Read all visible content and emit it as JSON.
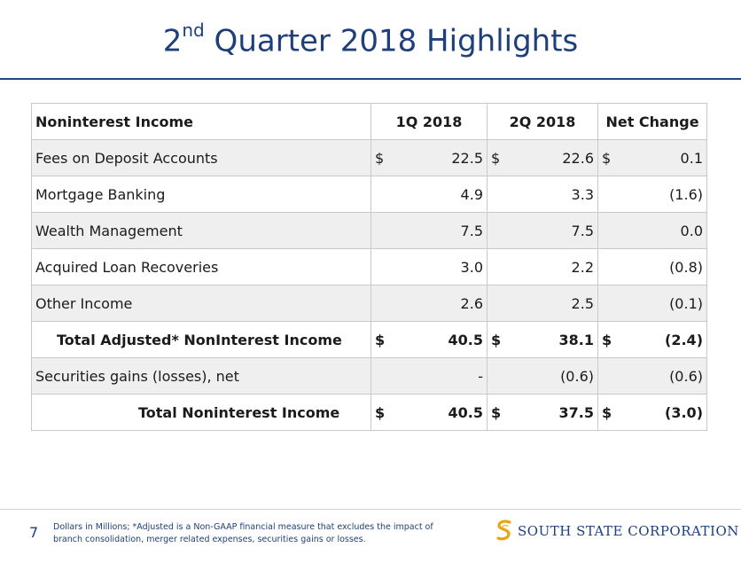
{
  "title": {
    "main": "2",
    "sup": "nd",
    "rest": " Quarter 2018 Highlights"
  },
  "table": {
    "headers": [
      "Noninterest Income",
      "1Q 2018",
      "2Q 2018",
      "Net Change"
    ],
    "rows": [
      {
        "label": "Fees on Deposit Accounts",
        "q1_sym": "$",
        "q1": "22.5",
        "q2_sym": "$",
        "q2": "22.6",
        "nc_sym": "$",
        "nc": "0.1"
      },
      {
        "label": "Mortgage Banking",
        "q1_sym": "",
        "q1": "4.9",
        "q2_sym": "",
        "q2": "3.3",
        "nc_sym": "",
        "nc": "(1.6)"
      },
      {
        "label": "Wealth Management",
        "q1_sym": "",
        "q1": "7.5",
        "q2_sym": "",
        "q2": "7.5",
        "nc_sym": "",
        "nc": "0.0"
      },
      {
        "label": "Acquired Loan Recoveries",
        "q1_sym": "",
        "q1": "3.0",
        "q2_sym": "",
        "q2": "2.2",
        "nc_sym": "",
        "nc": "(0.8)"
      },
      {
        "label": "Other Income",
        "q1_sym": "",
        "q1": "2.6",
        "q2_sym": "",
        "q2": "2.5",
        "nc_sym": "",
        "nc": "(0.1)"
      },
      {
        "label": "Total Adjusted* NonInterest Income",
        "q1_sym": "$",
        "q1": "40.5",
        "q2_sym": "$",
        "q2": "38.1",
        "nc_sym": "$",
        "nc": "(2.4)"
      },
      {
        "label": "Securities gains (losses), net",
        "q1_sym": "",
        "q1": "-",
        "q2_sym": "",
        "q2": "(0.6)",
        "nc_sym": "",
        "nc": "(0.6)"
      },
      {
        "label": "Total Noninterest Income",
        "q1_sym": "$",
        "q1": "40.5",
        "q2_sym": "$",
        "q2": "37.5",
        "nc_sym": "$",
        "nc": "(3.0)"
      }
    ]
  },
  "footer": {
    "page_number": "7",
    "note_line1": "Dollars in Millions; *Adjusted is a Non-GAAP financial measure that excludes the impact of",
    "note_line2": "branch consolidation, merger related expenses, securities gains or losses.",
    "logo_text": "SOUTH STATE CORPORATION",
    "logo_icon": "south-state-s-logo-icon",
    "brand_color": "#1e3f7a",
    "accent_color": "#e8a317"
  }
}
